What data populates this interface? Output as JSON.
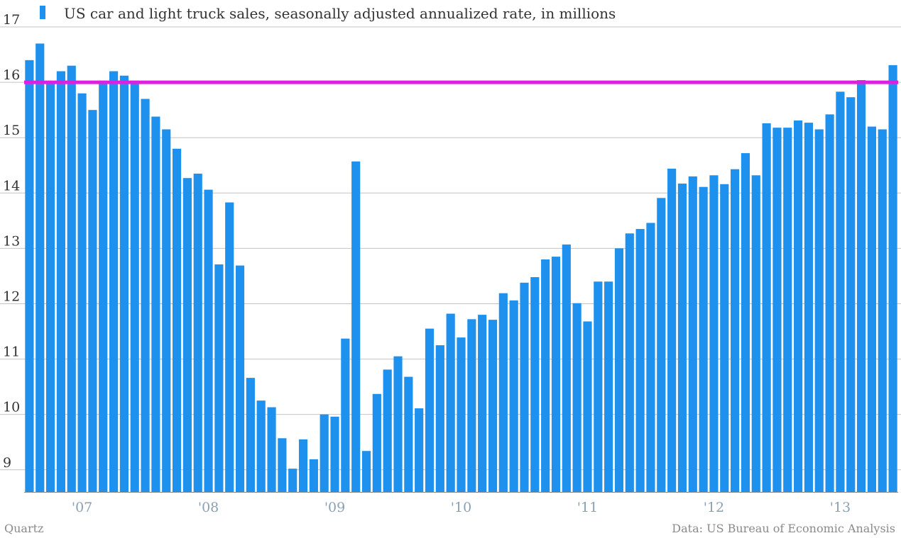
{
  "credit": "Quartz",
  "source": "Data: US Bureau of Economic Analysis",
  "chart_data": {
    "type": "bar",
    "series": [
      {
        "name": "US car and light truck sales, seasonally adjusted annualized rate, in millions",
        "color": "#1e90ee",
        "values": [
          16.4,
          16.7,
          15.97,
          16.2,
          16.3,
          15.8,
          15.5,
          16.03,
          16.2,
          16.12,
          16.03,
          15.7,
          15.38,
          15.15,
          14.8,
          14.27,
          14.35,
          14.06,
          12.71,
          13.83,
          12.69,
          10.66,
          10.25,
          10.13,
          9.57,
          9.02,
          9.55,
          9.19,
          10.0,
          9.96,
          11.37,
          14.57,
          9.34,
          10.37,
          10.81,
          11.05,
          10.68,
          10.11,
          11.55,
          11.25,
          11.82,
          11.39,
          11.72,
          11.8,
          11.71,
          12.19,
          12.06,
          12.38,
          12.48,
          12.8,
          12.85,
          13.07,
          12.01,
          11.68,
          12.4,
          12.4,
          13.0,
          13.27,
          13.35,
          13.46,
          13.91,
          14.44,
          14.17,
          14.3,
          14.11,
          14.32,
          14.16,
          14.43,
          14.72,
          14.32,
          15.26,
          15.18,
          15.18,
          15.31,
          15.27,
          15.15,
          15.42,
          15.83,
          15.73,
          16.04,
          15.2,
          15.15,
          16.31
        ]
      }
    ],
    "reference_line": {
      "value": 16.0,
      "color": "#dd1fe0"
    },
    "x_tick_labels": [
      "'07",
      "'08",
      "'09",
      "'10",
      "'11",
      "'12",
      "'13"
    ],
    "x_tick_positions": [
      5.5,
      17.5,
      29.5,
      41.5,
      53.5,
      65.5,
      77.5
    ],
    "y_ticks": [
      9,
      10,
      11,
      12,
      13,
      14,
      15,
      16,
      17
    ],
    "ylim": [
      8.6,
      17
    ],
    "grid": true,
    "legend": "top-left"
  }
}
